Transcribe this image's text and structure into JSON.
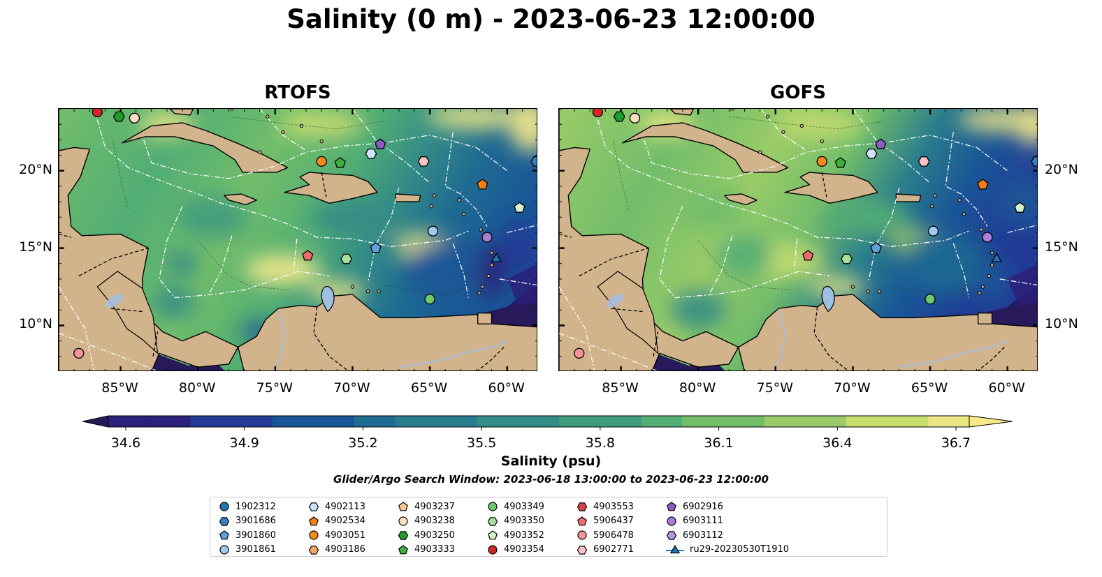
{
  "title": "Salinity (0 m) - 2023-06-23 12:00:00",
  "panels": [
    {
      "title": "RTOFS",
      "variant": "rtofs"
    },
    {
      "title": "GOFS",
      "variant": "gofs"
    }
  ],
  "axes": {
    "lon_ticks": [
      "85°W",
      "80°W",
      "75°W",
      "70°W",
      "65°W",
      "60°W"
    ],
    "lat_ticks": [
      "20°N",
      "15°N",
      "10°N"
    ],
    "lon_range": [
      -89,
      -58
    ],
    "lat_range": [
      7,
      24
    ]
  },
  "colorbar": {
    "label": "Salinity (psu)",
    "ticks": [
      "34.6",
      "34.9",
      "35.2",
      "35.5",
      "35.8",
      "36.1",
      "36.4",
      "36.7"
    ],
    "min": 34.6,
    "max": 36.7,
    "colors": [
      "#27195a",
      "#2b207a",
      "#223a96",
      "#1a5697",
      "#1f6b92",
      "#2a7d8c",
      "#348c86",
      "#3f9b7e",
      "#52ad74",
      "#72bd6a",
      "#9acb68",
      "#c6dc6f",
      "#ebe684",
      "#f6ea8a"
    ]
  },
  "colors": {
    "land": "#d2b48c",
    "lake": "#9fbfe0",
    "river": "#a6bddb",
    "deep_ocean": "#27195a"
  },
  "search_window": "Glider/Argo Search Window: 2023-06-18 13:00:00 to 2023-06-23 12:00:00",
  "markers": [
    {
      "id": "1902312",
      "color": "#1f77b4",
      "shape": "circle"
    },
    {
      "id": "3901686",
      "color": "#3b7fc0",
      "shape": "hexagon"
    },
    {
      "id": "3901860",
      "color": "#5fa0d8",
      "shape": "pentagon"
    },
    {
      "id": "3901861",
      "color": "#9ec9f0",
      "shape": "circle"
    },
    {
      "id": "4902113",
      "color": "#cde6fb",
      "shape": "hexagon"
    },
    {
      "id": "4902534",
      "color": "#f57f14",
      "shape": "pentagon"
    },
    {
      "id": "4903051",
      "color": "#f5891e",
      "shape": "circle"
    },
    {
      "id": "4903186",
      "color": "#f7a760",
      "shape": "hexagon"
    },
    {
      "id": "4903237",
      "color": "#fbc690",
      "shape": "pentagon"
    },
    {
      "id": "4903238",
      "color": "#fde0c0",
      "shape": "circle"
    },
    {
      "id": "4903250",
      "color": "#1f9e2c",
      "shape": "hexagon"
    },
    {
      "id": "4903333",
      "color": "#3caf3c",
      "shape": "pentagon"
    },
    {
      "id": "4903349",
      "color": "#6bc86b",
      "shape": "circle"
    },
    {
      "id": "4903350",
      "color": "#a6e0a0",
      "shape": "hexagon"
    },
    {
      "id": "4903352",
      "color": "#d4f2cc",
      "shape": "pentagon"
    },
    {
      "id": "4903354",
      "color": "#d62728",
      "shape": "circle"
    },
    {
      "id": "4903553",
      "color": "#e0404a",
      "shape": "hexagon"
    },
    {
      "id": "5906437",
      "color": "#ee6a6e",
      "shape": "pentagon"
    },
    {
      "id": "5906478",
      "color": "#f59598",
      "shape": "circle"
    },
    {
      "id": "6902771",
      "color": "#fbc4c4",
      "shape": "hexagon"
    },
    {
      "id": "6902916",
      "color": "#8c5cc0",
      "shape": "pentagon"
    },
    {
      "id": "6903111",
      "color": "#a77fd6",
      "shape": "circle"
    },
    {
      "id": "6903112",
      "color": "#b996e0",
      "shape": "hexagon"
    },
    {
      "id": "ru29-20230530T1910",
      "color": "#1f77b4",
      "shape": "triangle-line"
    }
  ],
  "platforms": [
    {
      "lon": -86.5,
      "lat": 23.8,
      "color": "#d62728",
      "shape": "circle"
    },
    {
      "lon": -85.1,
      "lat": 23.5,
      "color": "#1f9e2c",
      "shape": "hexagon"
    },
    {
      "lon": -84.1,
      "lat": 23.4,
      "color": "#fde0c0",
      "shape": "circle"
    },
    {
      "lon": -68.2,
      "lat": 21.7,
      "color": "#8c5cc0",
      "shape": "pentagon"
    },
    {
      "lon": -68.8,
      "lat": 21.1,
      "color": "#cde6fb",
      "shape": "hexagon"
    },
    {
      "lon": -72.0,
      "lat": 20.6,
      "color": "#f5891e",
      "shape": "circle"
    },
    {
      "lon": -70.8,
      "lat": 20.5,
      "color": "#3caf3c",
      "shape": "pentagon"
    },
    {
      "lon": -65.4,
      "lat": 20.6,
      "color": "#fbc4c4",
      "shape": "hexagon"
    },
    {
      "lon": -58.1,
      "lat": 20.6,
      "color": "#3b7fc0",
      "shape": "hexagon"
    },
    {
      "lon": -61.6,
      "lat": 19.1,
      "color": "#f57f14",
      "shape": "pentagon"
    },
    {
      "lon": -59.2,
      "lat": 17.6,
      "color": "#d4f2cc",
      "shape": "pentagon"
    },
    {
      "lon": -64.8,
      "lat": 16.1,
      "color": "#9ec9f0",
      "shape": "circle"
    },
    {
      "lon": -61.3,
      "lat": 15.7,
      "color": "#a77fd6",
      "shape": "circle"
    },
    {
      "lon": -68.5,
      "lat": 15.0,
      "color": "#5fa0d8",
      "shape": "pentagon"
    },
    {
      "lon": -72.9,
      "lat": 14.5,
      "color": "#ee6a6e",
      "shape": "pentagon"
    },
    {
      "lon": -70.4,
      "lat": 14.3,
      "color": "#a6e0a0",
      "shape": "hexagon"
    },
    {
      "lon": -60.7,
      "lat": 14.3,
      "color": "#1f77b4",
      "shape": "triangle"
    },
    {
      "lon": -65.0,
      "lat": 11.7,
      "color": "#6bc86b",
      "shape": "circle"
    },
    {
      "lon": -87.7,
      "lat": 8.2,
      "color": "#f59598",
      "shape": "circle"
    }
  ]
}
